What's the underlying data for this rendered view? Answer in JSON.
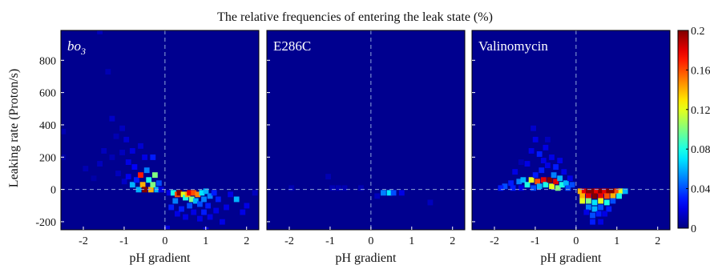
{
  "chart_data": {
    "type": "heatmap",
    "title": "The relative frequencies of entering the leak state (%)",
    "ylabel": "Leaking rate (Proton/s)",
    "xlabel": "pH gradient",
    "xlim": [
      -2.55,
      2.3
    ],
    "ylim": [
      -250,
      985
    ],
    "x_ticks": [
      -2,
      -1,
      0,
      1,
      2
    ],
    "y_ticks": [
      -200,
      0,
      200,
      400,
      600,
      800
    ],
    "bin_size": {
      "x": 0.125,
      "y": 32
    },
    "colorbar": {
      "min": 0,
      "max": 0.2,
      "ticks": [
        "0",
        "0.04",
        "0.08",
        "0.12",
        "0.16",
        "0.2"
      ]
    },
    "colors": {
      "background": "#00008f",
      "dashed_guides": "#8fa6d8"
    },
    "panels": [
      {
        "label": "bo3",
        "label_main": "bo",
        "label_sub": "3",
        "cells": [
          [
            -2.5,
            360,
            0.01
          ],
          [
            -2.5,
            200,
            0.008
          ],
          [
            -1.6,
            980,
            0.012
          ],
          [
            -1.4,
            730,
            0.01
          ],
          [
            -1.95,
            130,
            0.01
          ],
          [
            -1.75,
            70,
            0.008
          ],
          [
            -1.6,
            160,
            0.012
          ],
          [
            -1.5,
            240,
            0.012
          ],
          [
            -1.3,
            440,
            0.014
          ],
          [
            -1.3,
            200,
            0.01
          ],
          [
            -1.2,
            330,
            0.01
          ],
          [
            -1.15,
            100,
            0.012
          ],
          [
            -1.05,
            380,
            0.012
          ],
          [
            -1.05,
            230,
            0.012
          ],
          [
            -1.0,
            50,
            0.014
          ],
          [
            -0.95,
            310,
            0.016
          ],
          [
            -0.9,
            170,
            0.02
          ],
          [
            -0.9,
            80,
            0.022
          ],
          [
            -0.8,
            240,
            0.018
          ],
          [
            -0.8,
            30,
            0.06
          ],
          [
            -0.75,
            140,
            0.024
          ],
          [
            -0.7,
            60,
            0.03
          ],
          [
            -0.65,
            0,
            0.06
          ],
          [
            -0.6,
            270,
            0.016
          ],
          [
            -0.6,
            90,
            0.17
          ],
          [
            -0.55,
            30,
            0.14
          ],
          [
            -0.5,
            200,
            0.02
          ],
          [
            -0.5,
            0,
            0.2
          ],
          [
            -0.45,
            120,
            0.05
          ],
          [
            -0.4,
            60,
            0.08
          ],
          [
            -0.35,
            0,
            0.14
          ],
          [
            -0.3,
            30,
            0.1
          ],
          [
            -0.3,
            200,
            0.03
          ],
          [
            -0.25,
            90,
            0.1
          ],
          [
            -0.2,
            0,
            0.06
          ],
          [
            -0.15,
            40,
            0.04
          ],
          [
            -0.1,
            0,
            0.02
          ],
          [
            0.1,
            -20,
            0.02
          ],
          [
            0.2,
            -20,
            0.08
          ],
          [
            0.3,
            -30,
            0.16
          ],
          [
            0.35,
            -20,
            0.2
          ],
          [
            0.45,
            -30,
            0.12
          ],
          [
            0.5,
            -50,
            0.08
          ],
          [
            0.55,
            -30,
            0.14
          ],
          [
            0.6,
            -20,
            0.18
          ],
          [
            0.65,
            -60,
            0.1
          ],
          [
            0.7,
            -20,
            0.16
          ],
          [
            0.75,
            -70,
            0.06
          ],
          [
            0.8,
            -30,
            0.15
          ],
          [
            0.85,
            -90,
            0.04
          ],
          [
            0.9,
            -20,
            0.07
          ],
          [
            0.95,
            -60,
            0.05
          ],
          [
            1.0,
            -10,
            0.06
          ],
          [
            1.05,
            -100,
            0.03
          ],
          [
            1.1,
            -40,
            0.05
          ],
          [
            1.2,
            -20,
            0.03
          ],
          [
            1.25,
            -130,
            0.02
          ],
          [
            0.25,
            -70,
            0.05
          ],
          [
            0.15,
            -110,
            0.03
          ],
          [
            0.3,
            -150,
            0.02
          ],
          [
            0.4,
            -120,
            0.03
          ],
          [
            0.5,
            -170,
            0.02
          ],
          [
            0.6,
            -100,
            0.04
          ],
          [
            0.7,
            -140,
            0.02
          ],
          [
            0.85,
            -180,
            0.02
          ],
          [
            0.95,
            -140,
            0.03
          ],
          [
            1.0,
            -250,
            0.02
          ],
          [
            1.1,
            -170,
            0.02
          ],
          [
            1.3,
            -60,
            0.03
          ],
          [
            1.4,
            -200,
            0.02
          ],
          [
            1.5,
            -110,
            0.02
          ],
          [
            1.6,
            -30,
            0.02
          ],
          [
            1.75,
            -60,
            0.06
          ],
          [
            1.9,
            -140,
            0.02
          ],
          [
            2.0,
            -100,
            0.02
          ],
          [
            2.2,
            -20,
            0.012
          ],
          [
            0.05,
            -240,
            0.02
          ]
        ]
      },
      {
        "label": "E286C",
        "cells": [
          [
            -1.95,
            10,
            0.01
          ],
          [
            -1.05,
            80,
            0.01
          ],
          [
            -0.95,
            10,
            0.01
          ],
          [
            -0.8,
            10,
            0.01
          ],
          [
            -0.65,
            10,
            0.01
          ],
          [
            -0.25,
            10,
            0.01
          ],
          [
            0.15,
            -40,
            0.012
          ],
          [
            0.3,
            -20,
            0.05
          ],
          [
            0.45,
            -20,
            0.07
          ],
          [
            0.55,
            -20,
            0.04
          ],
          [
            0.75,
            -20,
            0.02
          ],
          [
            1.45,
            -80,
            0.012
          ]
        ]
      },
      {
        "label": "Valinomycin",
        "cells": [
          [
            -1.75,
            20,
            0.04
          ],
          [
            -1.6,
            40,
            0.03
          ],
          [
            -1.55,
            10,
            0.03
          ],
          [
            -1.4,
            50,
            0.05
          ],
          [
            -1.35,
            10,
            0.02
          ],
          [
            -1.3,
            60,
            0.06
          ],
          [
            -1.2,
            30,
            0.08
          ],
          [
            -1.1,
            60,
            0.12
          ],
          [
            -1.05,
            10,
            0.04
          ],
          [
            -1.0,
            90,
            0.03
          ],
          [
            -0.95,
            50,
            0.16
          ],
          [
            -0.9,
            20,
            0.06
          ],
          [
            -0.85,
            120,
            0.03
          ],
          [
            -0.8,
            60,
            0.18
          ],
          [
            -0.75,
            30,
            0.08
          ],
          [
            -0.7,
            150,
            0.02
          ],
          [
            -0.65,
            60,
            0.2
          ],
          [
            -0.6,
            20,
            0.12
          ],
          [
            -0.55,
            90,
            0.05
          ],
          [
            -0.5,
            50,
            0.18
          ],
          [
            -0.45,
            10,
            0.1
          ],
          [
            -0.4,
            70,
            0.06
          ],
          [
            -0.35,
            30,
            0.08
          ],
          [
            -0.3,
            110,
            0.02
          ],
          [
            -0.25,
            40,
            0.06
          ],
          [
            -0.2,
            10,
            0.04
          ],
          [
            -0.15,
            70,
            0.02
          ],
          [
            -0.1,
            30,
            0.04
          ],
          [
            -1.2,
            160,
            0.02
          ],
          [
            -1.1,
            240,
            0.02
          ],
          [
            -1.0,
            310,
            0.02
          ],
          [
            -0.9,
            220,
            0.03
          ],
          [
            -0.8,
            180,
            0.02
          ],
          [
            -0.75,
            260,
            0.02
          ],
          [
            -0.6,
            200,
            0.02
          ],
          [
            -0.5,
            140,
            0.03
          ],
          [
            -1.5,
            110,
            0.02
          ],
          [
            -1.85,
            10,
            0.03
          ],
          [
            -0.4,
            180,
            0.02
          ],
          [
            -1.35,
            170,
            0.01
          ],
          [
            -1.05,
            380,
            0.015
          ],
          [
            -0.7,
            310,
            0.012
          ],
          [
            0.1,
            -10,
            0.14
          ],
          [
            0.2,
            -10,
            0.18
          ],
          [
            0.3,
            -10,
            0.2
          ],
          [
            0.4,
            -10,
            0.2
          ],
          [
            0.5,
            -10,
            0.18
          ],
          [
            0.6,
            -10,
            0.2
          ],
          [
            0.7,
            -10,
            0.18
          ],
          [
            0.8,
            -10,
            0.2
          ],
          [
            0.9,
            -10,
            0.2
          ],
          [
            1.0,
            -10,
            0.16
          ],
          [
            1.1,
            -10,
            0.12
          ],
          [
            1.2,
            -10,
            0.06
          ],
          [
            0.15,
            -40,
            0.14
          ],
          [
            0.3,
            -40,
            0.18
          ],
          [
            0.45,
            -40,
            0.2
          ],
          [
            0.6,
            -40,
            0.18
          ],
          [
            0.75,
            -40,
            0.16
          ],
          [
            0.9,
            -40,
            0.14
          ],
          [
            1.05,
            -40,
            0.08
          ],
          [
            0.15,
            -70,
            0.12
          ],
          [
            0.3,
            -70,
            0.1
          ],
          [
            0.45,
            -80,
            0.07
          ],
          [
            0.6,
            -70,
            0.12
          ],
          [
            0.75,
            -80,
            0.08
          ],
          [
            0.9,
            -70,
            0.04
          ],
          [
            0.3,
            -110,
            0.05
          ],
          [
            0.45,
            -120,
            0.06
          ],
          [
            0.6,
            -110,
            0.04
          ],
          [
            0.8,
            -120,
            0.03
          ],
          [
            0.4,
            -160,
            0.04
          ],
          [
            0.55,
            -150,
            0.03
          ],
          [
            0.7,
            -150,
            0.02
          ],
          [
            0.25,
            -140,
            0.02
          ],
          [
            0.4,
            -200,
            0.03
          ],
          [
            0.6,
            -200,
            0.02
          ]
        ]
      }
    ]
  }
}
